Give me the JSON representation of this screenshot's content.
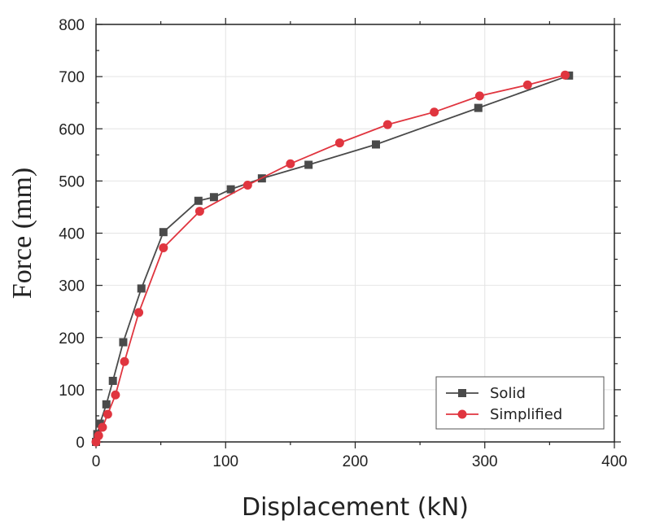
{
  "chart_data": {
    "type": "line",
    "xlabel": "Displacement (kN)",
    "ylabel": "Force (mm)",
    "xlim": [
      0,
      400
    ],
    "ylim": [
      0,
      800
    ],
    "xticks": [
      "0",
      "100",
      "200",
      "300",
      "400"
    ],
    "yticks": [
      "0",
      "100",
      "200",
      "300",
      "400",
      "500",
      "600",
      "700",
      "800"
    ],
    "grid": true,
    "legend_position": "bottom-right",
    "series": [
      {
        "name": "Solid",
        "color": "#4a4a4a",
        "marker": "square",
        "x": [
          0,
          1,
          3,
          8,
          13,
          21,
          35,
          52,
          79,
          91,
          104,
          128,
          164,
          216,
          295,
          365
        ],
        "y": [
          0,
          15,
          35,
          72,
          117,
          191,
          294,
          402,
          462,
          469,
          484,
          505,
          531,
          570,
          640,
          702
        ]
      },
      {
        "name": "Simplified",
        "color": "#e0353f",
        "marker": "circle",
        "x": [
          0,
          2,
          5,
          9,
          15,
          22,
          33,
          52,
          80,
          117,
          150,
          188,
          225,
          261,
          296,
          333,
          362
        ],
        "y": [
          0,
          12,
          28,
          53,
          90,
          154,
          248,
          372,
          442,
          492,
          533,
          573,
          608,
          632,
          663,
          684,
          703
        ]
      }
    ]
  }
}
